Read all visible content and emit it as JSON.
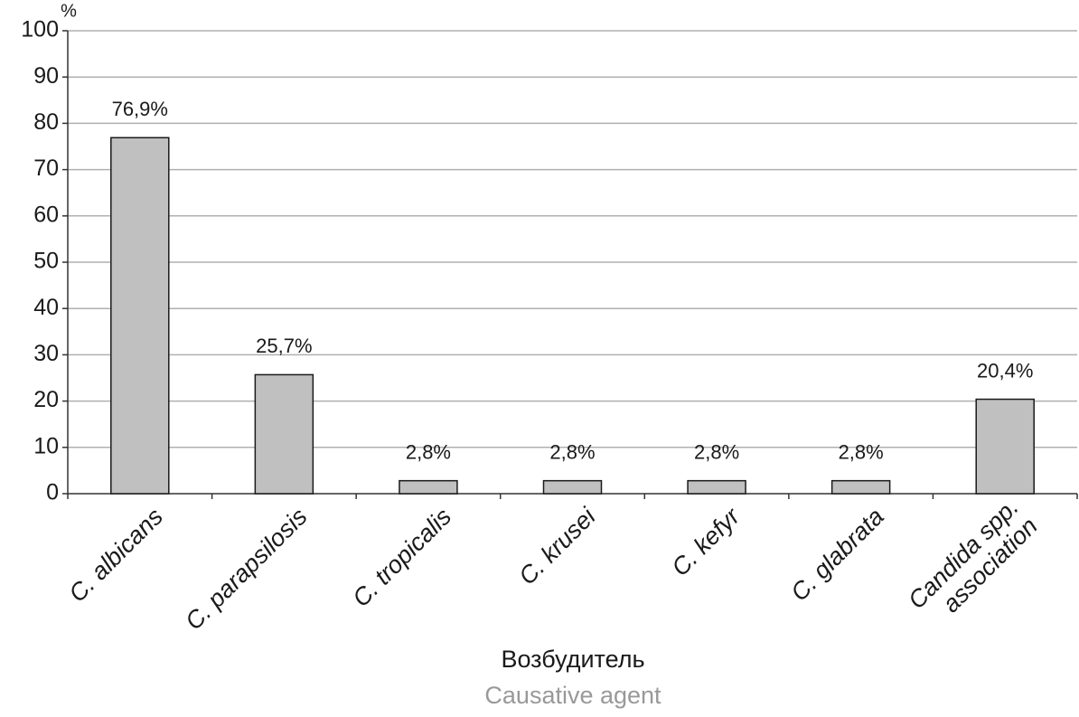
{
  "chart_data": {
    "type": "bar",
    "y_unit": "%",
    "x_label": "Возбудитель",
    "x_label_translation": "Causative agent",
    "categories": [
      "C. albicans",
      "C. parapsilosis",
      "C. tropicalis",
      "C. krusei",
      "C. kefyr",
      "C. glabrata",
      "Candida spp. association"
    ],
    "values": [
      76.9,
      25.7,
      2.8,
      2.8,
      2.8,
      2.8,
      20.4
    ],
    "value_labels": [
      "76,9%",
      "25,7%",
      "2,8%",
      "2,8%",
      "2,8%",
      "2,8%",
      "20,4%"
    ],
    "color": "#c0c0c0",
    "ylim": [
      0,
      100
    ],
    "yticks": [
      0,
      10,
      20,
      30,
      40,
      50,
      60,
      70,
      80,
      90,
      100
    ],
    "grid": true
  }
}
